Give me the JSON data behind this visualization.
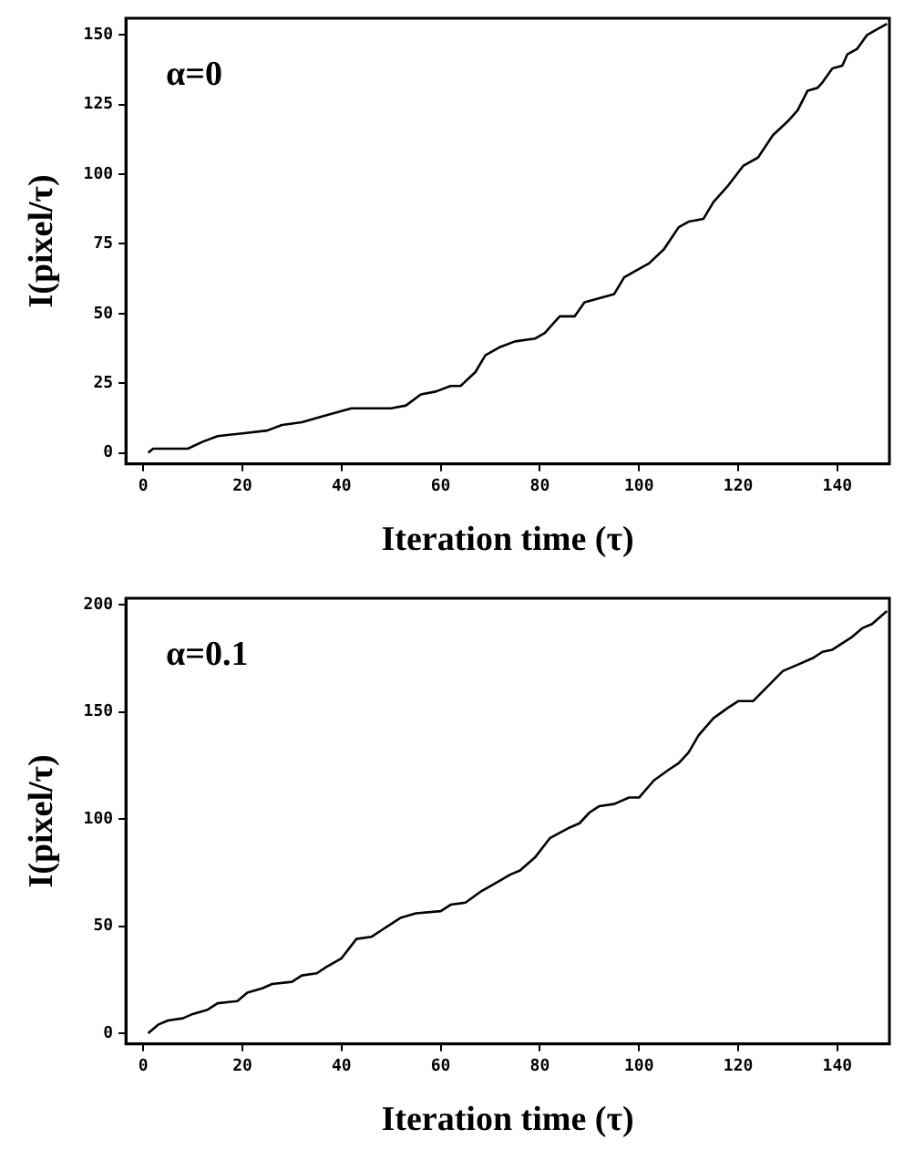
{
  "chart_data": [
    {
      "type": "line",
      "xlabel": "Iteration time (τ)",
      "ylabel": "I(pixel/τ)",
      "annotations": [
        "α=0"
      ],
      "xlim": [
        -3.5,
        150.5
      ],
      "ylim": [
        -4,
        156
      ],
      "xticks": [
        0,
        20,
        40,
        60,
        80,
        100,
        120,
        140
      ],
      "yticks": [
        0,
        25,
        50,
        75,
        100,
        125,
        150
      ],
      "grid": false,
      "legend": false,
      "marker": "none",
      "line_style": "solid",
      "series": [
        {
          "color": "#000000",
          "x": [
            1,
            2,
            9,
            12,
            15,
            20,
            25,
            28,
            32,
            36,
            38,
            42,
            50,
            53,
            56,
            59,
            62,
            64,
            67,
            69,
            72,
            75,
            79,
            81,
            84,
            87,
            89,
            93,
            95,
            97,
            100,
            102,
            105,
            108,
            110,
            113,
            115,
            118,
            121,
            124,
            127,
            130,
            132,
            134,
            136,
            137,
            139,
            141,
            142,
            144,
            146,
            148,
            150
          ],
          "values": [
            0,
            1.5,
            1.5,
            4,
            6,
            7,
            8,
            10,
            11,
            13,
            14,
            16,
            16,
            17,
            21,
            22,
            24,
            24,
            29,
            35,
            38,
            40,
            41,
            43,
            49,
            49,
            54,
            56,
            57,
            63,
            66,
            68,
            73,
            81,
            83,
            84,
            90,
            96,
            103,
            106,
            114,
            119,
            123,
            130,
            131,
            133,
            138,
            139,
            143,
            145,
            150,
            152,
            154
          ]
        }
      ]
    },
    {
      "type": "line",
      "xlabel": "Iteration time (τ)",
      "ylabel": "I(pixel/τ)",
      "annotations": [
        "α=0.1"
      ],
      "xlim": [
        -3.5,
        150.5
      ],
      "ylim": [
        -5,
        203
      ],
      "xticks": [
        0,
        20,
        40,
        60,
        80,
        100,
        120,
        140
      ],
      "yticks": [
        0,
        50,
        100,
        150,
        200
      ],
      "grid": false,
      "legend": false,
      "marker": "none",
      "line_style": "solid",
      "series": [
        {
          "color": "#000000",
          "x": [
            1,
            3,
            5,
            8,
            10,
            13,
            15,
            19,
            21,
            24,
            26,
            30,
            32,
            35,
            37,
            40,
            43,
            46,
            48,
            52,
            55,
            60,
            62,
            65,
            68,
            71,
            74,
            76,
            79,
            82,
            86,
            88,
            90,
            92,
            95,
            98,
            100,
            103,
            106,
            108,
            110,
            112,
            115,
            118,
            120,
            123,
            126,
            129,
            132,
            135,
            137,
            139,
            141,
            143,
            145,
            147,
            150
          ],
          "values": [
            0,
            4,
            6,
            7,
            9,
            11,
            14,
            15,
            19,
            21,
            23,
            24,
            27,
            28,
            31,
            35,
            44,
            45,
            48,
            54,
            56,
            57,
            60,
            61,
            66,
            70,
            74,
            76,
            82,
            91,
            96,
            98,
            103,
            106,
            107,
            110,
            110,
            118,
            123,
            126,
            131,
            139,
            147,
            152,
            155,
            155,
            162,
            169,
            172,
            175,
            178,
            179,
            182,
            185,
            189,
            191,
            197
          ]
        }
      ]
    }
  ]
}
